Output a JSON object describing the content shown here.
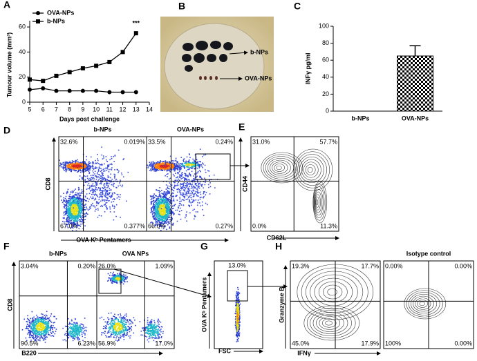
{
  "chart_data": [
    {
      "type": "line",
      "panel": "A",
      "x": [
        5,
        6,
        7,
        8,
        9,
        10,
        11,
        12,
        13
      ],
      "series": [
        {
          "name": "OVA-NPs",
          "marker": "circle",
          "color": "#000000",
          "values": [
            10,
            11,
            9,
            9,
            9,
            9,
            8,
            8,
            8
          ]
        },
        {
          "name": "b-NPs",
          "marker": "square",
          "color": "#000000",
          "values": [
            18,
            17,
            21,
            24,
            27,
            29,
            32,
            40,
            55
          ]
        }
      ],
      "xlim": [
        5,
        14
      ],
      "xticks": [
        5,
        6,
        7,
        8,
        9,
        10,
        11,
        12,
        13,
        14
      ],
      "ylim": [
        0,
        65
      ],
      "yticks": [
        0,
        20,
        40,
        60
      ],
      "xlabel": "Days post challenge",
      "ylabel": "Tumour volume (mm³)",
      "annotation": "***"
    },
    {
      "type": "bar",
      "panel": "C",
      "categories": [
        "b-NPs",
        "OVA-NPs"
      ],
      "values": [
        0,
        65
      ],
      "errors": [
        null,
        12
      ],
      "ylim": [
        0,
        100
      ],
      "yticks": [
        0,
        20,
        40,
        60,
        80,
        100
      ],
      "ylabel": "INFγ pg/ml"
    }
  ],
  "photo": {
    "letter": "B",
    "labels": [
      "b-NPs",
      "OVA-NPs"
    ]
  },
  "flow": [
    {
      "letter": "D",
      "xlabel": "OVA Kᵇ Pentamers",
      "ylabel": "CD8",
      "style": "dot",
      "plots": [
        {
          "title": "b-NPs",
          "quadrants": [
            "32.6%",
            "0.019%",
            "67.0%",
            "0.377%"
          ]
        },
        {
          "title": "OVA-NPs",
          "quadrants": [
            "33.5%",
            "0.24%",
            "66.0%",
            "0.27%"
          ]
        }
      ]
    },
    {
      "letter": "E",
      "xlabel": "CD62L",
      "ylabel": "CD44",
      "style": "contour",
      "plots": [
        {
          "quadrants": [
            "31.0%",
            "57.7%",
            "0.0%",
            "11.3%"
          ]
        }
      ]
    },
    {
      "letter": "F",
      "xlabel": "B220",
      "ylabel": "CD8",
      "style": "dot",
      "plots": [
        {
          "title": "b-NPs",
          "quadrants": [
            "3.04%",
            "0.20%",
            "90.5%",
            "6.23%"
          ]
        },
        {
          "title": "OVA NPs",
          "quadrants": [
            "26.0%",
            "1.09%",
            "56.9%",
            "17.0%"
          ]
        }
      ]
    },
    {
      "letter": "G",
      "xlabel": "FSC",
      "ylabel": "OVA Kᵇ Pentamers",
      "style": "gate",
      "plots": [
        {
          "gate": "13.0%"
        }
      ]
    },
    {
      "letter": "H",
      "xlabel": "IFNγ",
      "ylabel": "Granzyme B",
      "style": "contour",
      "plots": [
        {
          "quadrants": [
            "19.3%",
            "17.7%",
            "45.0%",
            "17.9%"
          ]
        },
        {
          "title": "Isotype control",
          "quadrants": [
            "0.00%",
            "0.00%",
            "100%",
            "0.00%"
          ]
        }
      ]
    }
  ]
}
